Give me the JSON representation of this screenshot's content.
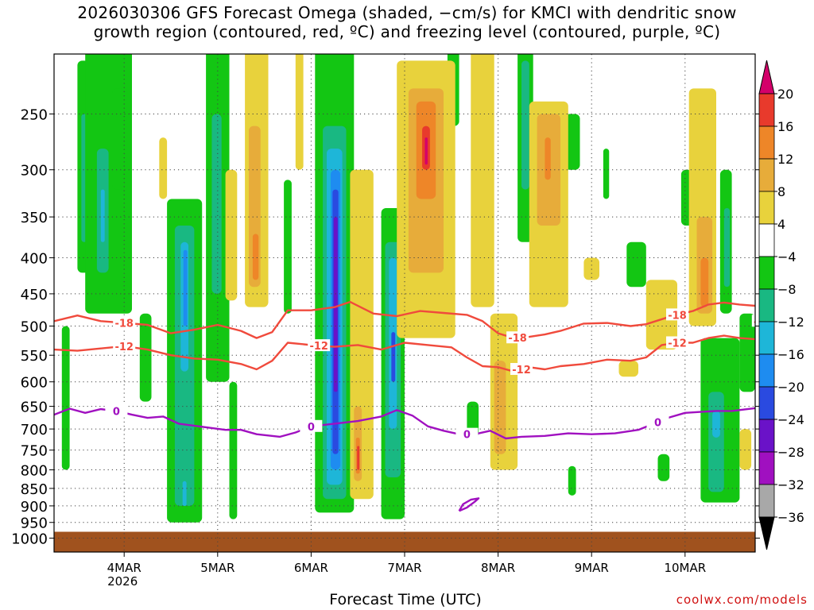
{
  "chart_data": {
    "type": "heatmap",
    "title_line1": "2026030306 GFS Forecast Omega (shaded, −cm/s) for KMCI with dendritic snow",
    "title_line2": "growth region (contoured, red, ºC) and freezing level (contoured, purple, ºC)",
    "xlabel": "Forecast Time (UTC)",
    "credit": "coolwx.com/models",
    "x_ticks": [
      {
        "hour": 18,
        "label": "4MAR",
        "sub": "2026"
      },
      {
        "hour": 42,
        "label": "5MAR",
        "sub": ""
      },
      {
        "hour": 66,
        "label": "6MAR",
        "sub": ""
      },
      {
        "hour": 90,
        "label": "7MAR",
        "sub": ""
      },
      {
        "hour": 114,
        "label": "8MAR",
        "sub": ""
      },
      {
        "hour": 138,
        "label": "9MAR",
        "sub": ""
      },
      {
        "hour": 162,
        "label": "10MAR",
        "sub": ""
      }
    ],
    "xlim_hours": [
      0,
      180
    ],
    "y_ticks_hpa": [
      250,
      300,
      350,
      400,
      450,
      500,
      550,
      600,
      650,
      700,
      750,
      800,
      850,
      900,
      950,
      1000
    ],
    "ylim_hpa": [
      200,
      1010
    ],
    "colorbar": {
      "labels": [
        "20",
        "16",
        "12",
        "8",
        "4",
        "−4",
        "−8",
        "−12",
        "−16",
        "−20",
        "−24",
        "−28",
        "−32",
        "−36"
      ],
      "colors": [
        "#d4006a",
        "#e83a2c",
        "#ee8628",
        "#e7ac3a",
        "#e8d23c",
        "#ffffff",
        "#13c613",
        "#19b882",
        "#1eb6d8",
        "#1e8cf0",
        "#2a4ae0",
        "#6a12c8",
        "#a010c0",
        "#a8a8a8",
        "#000000"
      ]
    },
    "shading_colors": {
      "g8": "#13c613",
      "g12": "#19b882",
      "c16": "#1eb6d8",
      "b20": "#1e8cf0",
      "b24": "#2a4ae0",
      "p28": "#6a12c8",
      "p32": "#a010c0",
      "y4": "#e8d23c",
      "y8": "#e7ac3a",
      "o12": "#ee8628",
      "r16": "#e83a2c",
      "m20": "#d4006a"
    },
    "terrain_color": "#a0521e",
    "omega_cells": [
      {
        "c": "g8",
        "t0": 2,
        "t1": 4,
        "p0": 500,
        "p1": 800
      },
      {
        "c": "g8",
        "t0": 6,
        "t1": 9,
        "p0": 210,
        "p1": 420
      },
      {
        "c": "g12",
        "t0": 7,
        "t1": 8.5,
        "p0": 250,
        "p1": 380
      },
      {
        "c": "g8",
        "t0": 8,
        "t1": 20,
        "p0": 200,
        "p1": 480
      },
      {
        "c": "g12",
        "t0": 11,
        "t1": 14,
        "p0": 280,
        "p1": 420
      },
      {
        "c": "c16",
        "t0": 12,
        "t1": 13,
        "p0": 320,
        "p1": 380
      },
      {
        "c": "g8",
        "t0": 15,
        "t1": 18,
        "p0": 230,
        "p1": 320
      },
      {
        "c": "g8",
        "t0": 22,
        "t1": 25,
        "p0": 480,
        "p1": 640
      },
      {
        "c": "g8",
        "t0": 29,
        "t1": 38,
        "p0": 330,
        "p1": 950
      },
      {
        "c": "g12",
        "t0": 31,
        "t1": 36,
        "p0": 360,
        "p1": 900
      },
      {
        "c": "c16",
        "t0": 32.5,
        "t1": 34.5,
        "p0": 380,
        "p1": 580
      },
      {
        "c": "b20",
        "t0": 33.2,
        "t1": 34.2,
        "p0": 390,
        "p1": 500
      },
      {
        "c": "c16",
        "t0": 33,
        "t1": 34,
        "p0": 830,
        "p1": 900
      },
      {
        "c": "g8",
        "t0": 39,
        "t1": 45,
        "p0": 200,
        "p1": 600
      },
      {
        "c": "g12",
        "t0": 40.5,
        "t1": 43,
        "p0": 250,
        "p1": 450
      },
      {
        "c": "g8",
        "t0": 45,
        "t1": 47,
        "p0": 600,
        "p1": 940
      },
      {
        "c": "g8",
        "t0": 59,
        "t1": 61,
        "p0": 310,
        "p1": 480
      },
      {
        "c": "g8",
        "t0": 67,
        "t1": 77,
        "p0": 200,
        "p1": 920
      },
      {
        "c": "g12",
        "t0": 69,
        "t1": 75,
        "p0": 260,
        "p1": 880
      },
      {
        "c": "c16",
        "t0": 70,
        "t1": 74,
        "p0": 280,
        "p1": 840
      },
      {
        "c": "b20",
        "t0": 71,
        "t1": 73.5,
        "p0": 300,
        "p1": 800
      },
      {
        "c": "b24",
        "t0": 71.5,
        "t1": 73,
        "p0": 320,
        "p1": 760
      },
      {
        "c": "p28",
        "t0": 71.8,
        "t1": 72.8,
        "p0": 350,
        "p1": 620
      },
      {
        "c": "g8",
        "t0": 84,
        "t1": 90,
        "p0": 340,
        "p1": 940
      },
      {
        "c": "g12",
        "t0": 85,
        "t1": 89,
        "p0": 380,
        "p1": 820
      },
      {
        "c": "c16",
        "t0": 86,
        "t1": 88,
        "p0": 400,
        "p1": 700
      },
      {
        "c": "b24",
        "t0": 86.6,
        "t1": 87.6,
        "p0": 510,
        "p1": 600
      },
      {
        "c": "g8",
        "t0": 101,
        "t1": 104,
        "p0": 200,
        "p1": 260
      },
      {
        "c": "g8",
        "t0": 106,
        "t1": 109,
        "p0": 640,
        "p1": 720
      },
      {
        "c": "g8",
        "t0": 119,
        "t1": 123,
        "p0": 200,
        "p1": 380
      },
      {
        "c": "g12",
        "t0": 120,
        "t1": 122,
        "p0": 210,
        "p1": 320
      },
      {
        "c": "g8",
        "t0": 131,
        "t1": 135,
        "p0": 250,
        "p1": 300
      },
      {
        "c": "g8",
        "t0": 132,
        "t1": 134,
        "p0": 790,
        "p1": 870
      },
      {
        "c": "g8",
        "t0": 141,
        "t1": 142.5,
        "p0": 280,
        "p1": 330
      },
      {
        "c": "g8",
        "t0": 147,
        "t1": 152,
        "p0": 380,
        "p1": 440
      },
      {
        "c": "g8",
        "t0": 155,
        "t1": 158,
        "p0": 760,
        "p1": 830
      },
      {
        "c": "g8",
        "t0": 161,
        "t1": 164,
        "p0": 300,
        "p1": 360
      },
      {
        "c": "g8",
        "t0": 166,
        "t1": 176,
        "p0": 520,
        "p1": 890
      },
      {
        "c": "g12",
        "t0": 168,
        "t1": 172,
        "p0": 620,
        "p1": 860
      },
      {
        "c": "c16",
        "t0": 169,
        "t1": 171,
        "p0": 660,
        "p1": 720
      },
      {
        "c": "g8",
        "t0": 171,
        "t1": 174,
        "p0": 300,
        "p1": 480
      },
      {
        "c": "g12",
        "t0": 172,
        "t1": 173.5,
        "p0": 340,
        "p1": 440
      },
      {
        "c": "g8",
        "t0": 176,
        "t1": 180,
        "p0": 480,
        "p1": 620
      },
      {
        "c": "y4",
        "t0": 27,
        "t1": 29,
        "p0": 270,
        "p1": 330
      },
      {
        "c": "y4",
        "t0": 44,
        "t1": 47,
        "p0": 300,
        "p1": 460
      },
      {
        "c": "y4",
        "t0": 49,
        "t1": 55,
        "p0": 200,
        "p1": 470
      },
      {
        "c": "y8",
        "t0": 50,
        "t1": 53,
        "p0": 260,
        "p1": 440
      },
      {
        "c": "o12",
        "t0": 51,
        "t1": 52.5,
        "p0": 370,
        "p1": 430
      },
      {
        "c": "y4",
        "t0": 62,
        "t1": 64,
        "p0": 200,
        "p1": 300
      },
      {
        "c": "y4",
        "t0": 76,
        "t1": 82,
        "p0": 300,
        "p1": 880
      },
      {
        "c": "y8",
        "t0": 77,
        "t1": 79,
        "p0": 650,
        "p1": 830
      },
      {
        "c": "o12",
        "t0": 77.5,
        "t1": 78.5,
        "p0": 720,
        "p1": 810
      },
      {
        "c": "r16",
        "t0": 77.8,
        "t1": 78.4,
        "p0": 740,
        "p1": 800
      },
      {
        "c": "y4",
        "t0": 88,
        "t1": 103,
        "p0": 210,
        "p1": 520
      },
      {
        "c": "y8",
        "t0": 91,
        "t1": 100,
        "p0": 230,
        "p1": 420
      },
      {
        "c": "o12",
        "t0": 93,
        "t1": 98,
        "p0": 240,
        "p1": 330
      },
      {
        "c": "r16",
        "t0": 94.5,
        "t1": 96.5,
        "p0": 260,
        "p1": 300
      },
      {
        "c": "m20",
        "t0": 95.2,
        "t1": 95.9,
        "p0": 270,
        "p1": 295
      },
      {
        "c": "y4",
        "t0": 107,
        "t1": 113,
        "p0": 200,
        "p1": 470
      },
      {
        "c": "y4",
        "t0": 112,
        "t1": 119,
        "p0": 480,
        "p1": 800
      },
      {
        "c": "y8",
        "t0": 113,
        "t1": 116,
        "p0": 560,
        "p1": 760
      },
      {
        "c": "y4",
        "t0": 122,
        "t1": 132,
        "p0": 240,
        "p1": 470
      },
      {
        "c": "y8",
        "t0": 124,
        "t1": 130,
        "p0": 250,
        "p1": 360
      },
      {
        "c": "o12",
        "t0": 126,
        "t1": 127.5,
        "p0": 270,
        "p1": 310
      },
      {
        "c": "y4",
        "t0": 136,
        "t1": 140,
        "p0": 400,
        "p1": 430
      },
      {
        "c": "y4",
        "t0": 145,
        "t1": 150,
        "p0": 560,
        "p1": 590
      },
      {
        "c": "y4",
        "t0": 152,
        "t1": 160,
        "p0": 430,
        "p1": 540
      },
      {
        "c": "y4",
        "t0": 163,
        "t1": 170,
        "p0": 230,
        "p1": 500
      },
      {
        "c": "y8",
        "t0": 165,
        "t1": 169,
        "p0": 350,
        "p1": 480
      },
      {
        "c": "o12",
        "t0": 166,
        "t1": 168,
        "p0": 400,
        "p1": 470
      },
      {
        "c": "y4",
        "t0": 176,
        "t1": 179,
        "p0": 700,
        "p1": 800
      }
    ],
    "contours": [
      {
        "label": "-18",
        "color": "#f04a3c",
        "label_at": [
          18,
          119,
          182,
          160
        ],
        "points": [
          [
            0,
            492
          ],
          [
            6,
            483
          ],
          [
            12,
            492
          ],
          [
            18,
            495
          ],
          [
            24,
            498
          ],
          [
            30,
            512
          ],
          [
            36,
            506
          ],
          [
            42,
            498
          ],
          [
            48,
            508
          ],
          [
            52,
            520
          ],
          [
            56,
            510
          ],
          [
            60,
            475
          ],
          [
            66,
            475
          ],
          [
            72,
            470
          ],
          [
            76,
            462
          ],
          [
            82,
            480
          ],
          [
            88,
            484
          ],
          [
            94,
            476
          ],
          [
            100,
            479
          ],
          [
            106,
            482
          ],
          [
            110,
            492
          ],
          [
            114,
            512
          ],
          [
            118,
            520
          ],
          [
            122,
            518
          ],
          [
            126,
            514
          ],
          [
            130,
            508
          ],
          [
            136,
            496
          ],
          [
            142,
            495
          ],
          [
            148,
            500
          ],
          [
            152,
            497
          ],
          [
            158,
            485
          ],
          [
            164,
            476
          ],
          [
            168,
            466
          ],
          [
            172,
            463
          ],
          [
            176,
            466
          ],
          [
            180,
            468
          ]
        ]
      },
      {
        "label": "-12",
        "color": "#f04a3c",
        "label_at": [
          18,
          68,
          120,
          160
        ],
        "points": [
          [
            0,
            540
          ],
          [
            6,
            542
          ],
          [
            12,
            538
          ],
          [
            18,
            534
          ],
          [
            24,
            540
          ],
          [
            30,
            550
          ],
          [
            36,
            556
          ],
          [
            42,
            558
          ],
          [
            48,
            566
          ],
          [
            52,
            576
          ],
          [
            56,
            560
          ],
          [
            60,
            528
          ],
          [
            66,
            532
          ],
          [
            72,
            535
          ],
          [
            78,
            532
          ],
          [
            84,
            540
          ],
          [
            90,
            528
          ],
          [
            96,
            532
          ],
          [
            102,
            536
          ],
          [
            106,
            554
          ],
          [
            110,
            570
          ],
          [
            114,
            572
          ],
          [
            118,
            580
          ],
          [
            122,
            572
          ],
          [
            126,
            576
          ],
          [
            130,
            570
          ],
          [
            136,
            566
          ],
          [
            142,
            558
          ],
          [
            148,
            560
          ],
          [
            152,
            554
          ],
          [
            156,
            532
          ],
          [
            160,
            528
          ],
          [
            164,
            528
          ],
          [
            168,
            520
          ],
          [
            172,
            516
          ],
          [
            176,
            520
          ],
          [
            180,
            522
          ]
        ]
      },
      {
        "label": "0",
        "color": "#a010c0",
        "label_at": [
          16,
          66,
          106,
          155
        ],
        "points": [
          [
            0,
            668
          ],
          [
            4,
            655
          ],
          [
            8,
            664
          ],
          [
            12,
            656
          ],
          [
            16,
            660
          ],
          [
            20,
            668
          ],
          [
            24,
            675
          ],
          [
            28,
            672
          ],
          [
            32,
            688
          ],
          [
            38,
            695
          ],
          [
            44,
            702
          ],
          [
            48,
            702
          ],
          [
            52,
            712
          ],
          [
            58,
            718
          ],
          [
            62,
            708
          ],
          [
            66,
            694
          ],
          [
            72,
            688
          ],
          [
            78,
            682
          ],
          [
            84,
            672
          ],
          [
            88,
            658
          ],
          [
            92,
            670
          ],
          [
            96,
            694
          ],
          [
            100,
            704
          ],
          [
            104,
            712
          ],
          [
            108,
            712
          ],
          [
            112,
            704
          ],
          [
            116,
            722
          ],
          [
            120,
            718
          ],
          [
            126,
            716
          ],
          [
            132,
            710
          ],
          [
            138,
            712
          ],
          [
            144,
            710
          ],
          [
            150,
            702
          ],
          [
            154,
            688
          ],
          [
            158,
            674
          ],
          [
            162,
            664
          ],
          [
            166,
            662
          ],
          [
            170,
            660
          ],
          [
            174,
            660
          ],
          [
            178,
            656
          ],
          [
            180,
            654
          ]
        ]
      },
      {
        "label": "",
        "color": "#a010c0",
        "label_at": [],
        "points": [
          [
            104,
            915
          ],
          [
            105,
            895
          ],
          [
            107,
            882
          ],
          [
            109,
            878
          ],
          [
            108,
            888
          ],
          [
            106,
            905
          ],
          [
            104,
            915
          ]
        ]
      }
    ]
  }
}
